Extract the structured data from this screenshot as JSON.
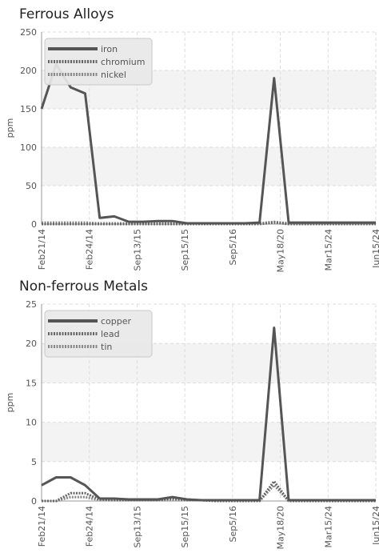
{
  "chart_data": [
    {
      "type": "line",
      "title": "Ferrous Alloys",
      "ylabel": "ppm",
      "xlabel": "",
      "ylim": [
        0,
        250
      ],
      "yticks": [
        0,
        50,
        100,
        150,
        200,
        250
      ],
      "grid": true,
      "legend_position": "top-left",
      "x_tick_labels": [
        "Feb21/14",
        "Feb24/14",
        "Sep13/15",
        "Sep15/15",
        "Sep5/16",
        "May18/20",
        "Mar15/24",
        "Jun15/24"
      ],
      "series": [
        {
          "name": "iron",
          "color": "#555555",
          "style": "solid",
          "values": [
            150,
            208,
            178,
            170,
            8,
            10,
            3,
            3,
            4,
            4,
            1,
            1,
            1,
            1,
            1,
            2,
            190,
            2,
            2,
            2,
            2,
            2,
            2,
            2
          ]
        },
        {
          "name": "chromium",
          "color": "#666666",
          "style": "dotted",
          "values": [
            0,
            0,
            0,
            0,
            0,
            0,
            0,
            0,
            0,
            0,
            0,
            0,
            0,
            0,
            0,
            0,
            2,
            0,
            0,
            0,
            0,
            0,
            0,
            0
          ]
        },
        {
          "name": "nickel",
          "color": "#888888",
          "style": "dotted",
          "values": [
            2,
            2,
            2,
            2,
            1,
            1,
            1,
            1,
            1,
            1,
            1,
            1,
            1,
            1,
            1,
            1,
            3,
            1,
            1,
            1,
            1,
            1,
            1,
            1
          ]
        }
      ]
    },
    {
      "type": "line",
      "title": "Non-ferrous Metals",
      "ylabel": "ppm",
      "xlabel": "",
      "ylim": [
        0,
        25
      ],
      "yticks": [
        0,
        5,
        10,
        15,
        20,
        25
      ],
      "grid": true,
      "legend_position": "top-left",
      "x_tick_labels": [
        "Feb21/14",
        "Feb24/14",
        "Sep13/15",
        "Sep15/15",
        "Sep5/16",
        "May18/20",
        "Mar15/24",
        "Jun15/24"
      ],
      "series": [
        {
          "name": "copper",
          "color": "#555555",
          "style": "solid",
          "values": [
            2,
            3,
            3,
            2,
            0.3,
            0.3,
            0.2,
            0.2,
            0.2,
            0.5,
            0.2,
            0.1,
            0.1,
            0.1,
            0.1,
            0.1,
            22,
            0.1,
            0.1,
            0.1,
            0.1,
            0.1,
            0.1,
            0.1
          ]
        },
        {
          "name": "lead",
          "color": "#666666",
          "style": "dotted",
          "values": [
            0,
            0,
            1,
            1,
            0.2,
            0.1,
            0.1,
            0.1,
            0.1,
            0.3,
            0.1,
            0.1,
            0,
            0,
            0,
            0,
            2.5,
            0,
            0,
            0,
            0,
            0,
            0,
            0
          ]
        },
        {
          "name": "tin",
          "color": "#888888",
          "style": "dotted",
          "values": [
            0,
            0,
            0.5,
            0.5,
            0.1,
            0.1,
            0.1,
            0.1,
            0.1,
            0.1,
            0.1,
            0.1,
            0,
            0,
            0,
            0,
            2,
            0,
            0,
            0,
            0,
            0,
            0,
            0
          ]
        }
      ]
    }
  ]
}
